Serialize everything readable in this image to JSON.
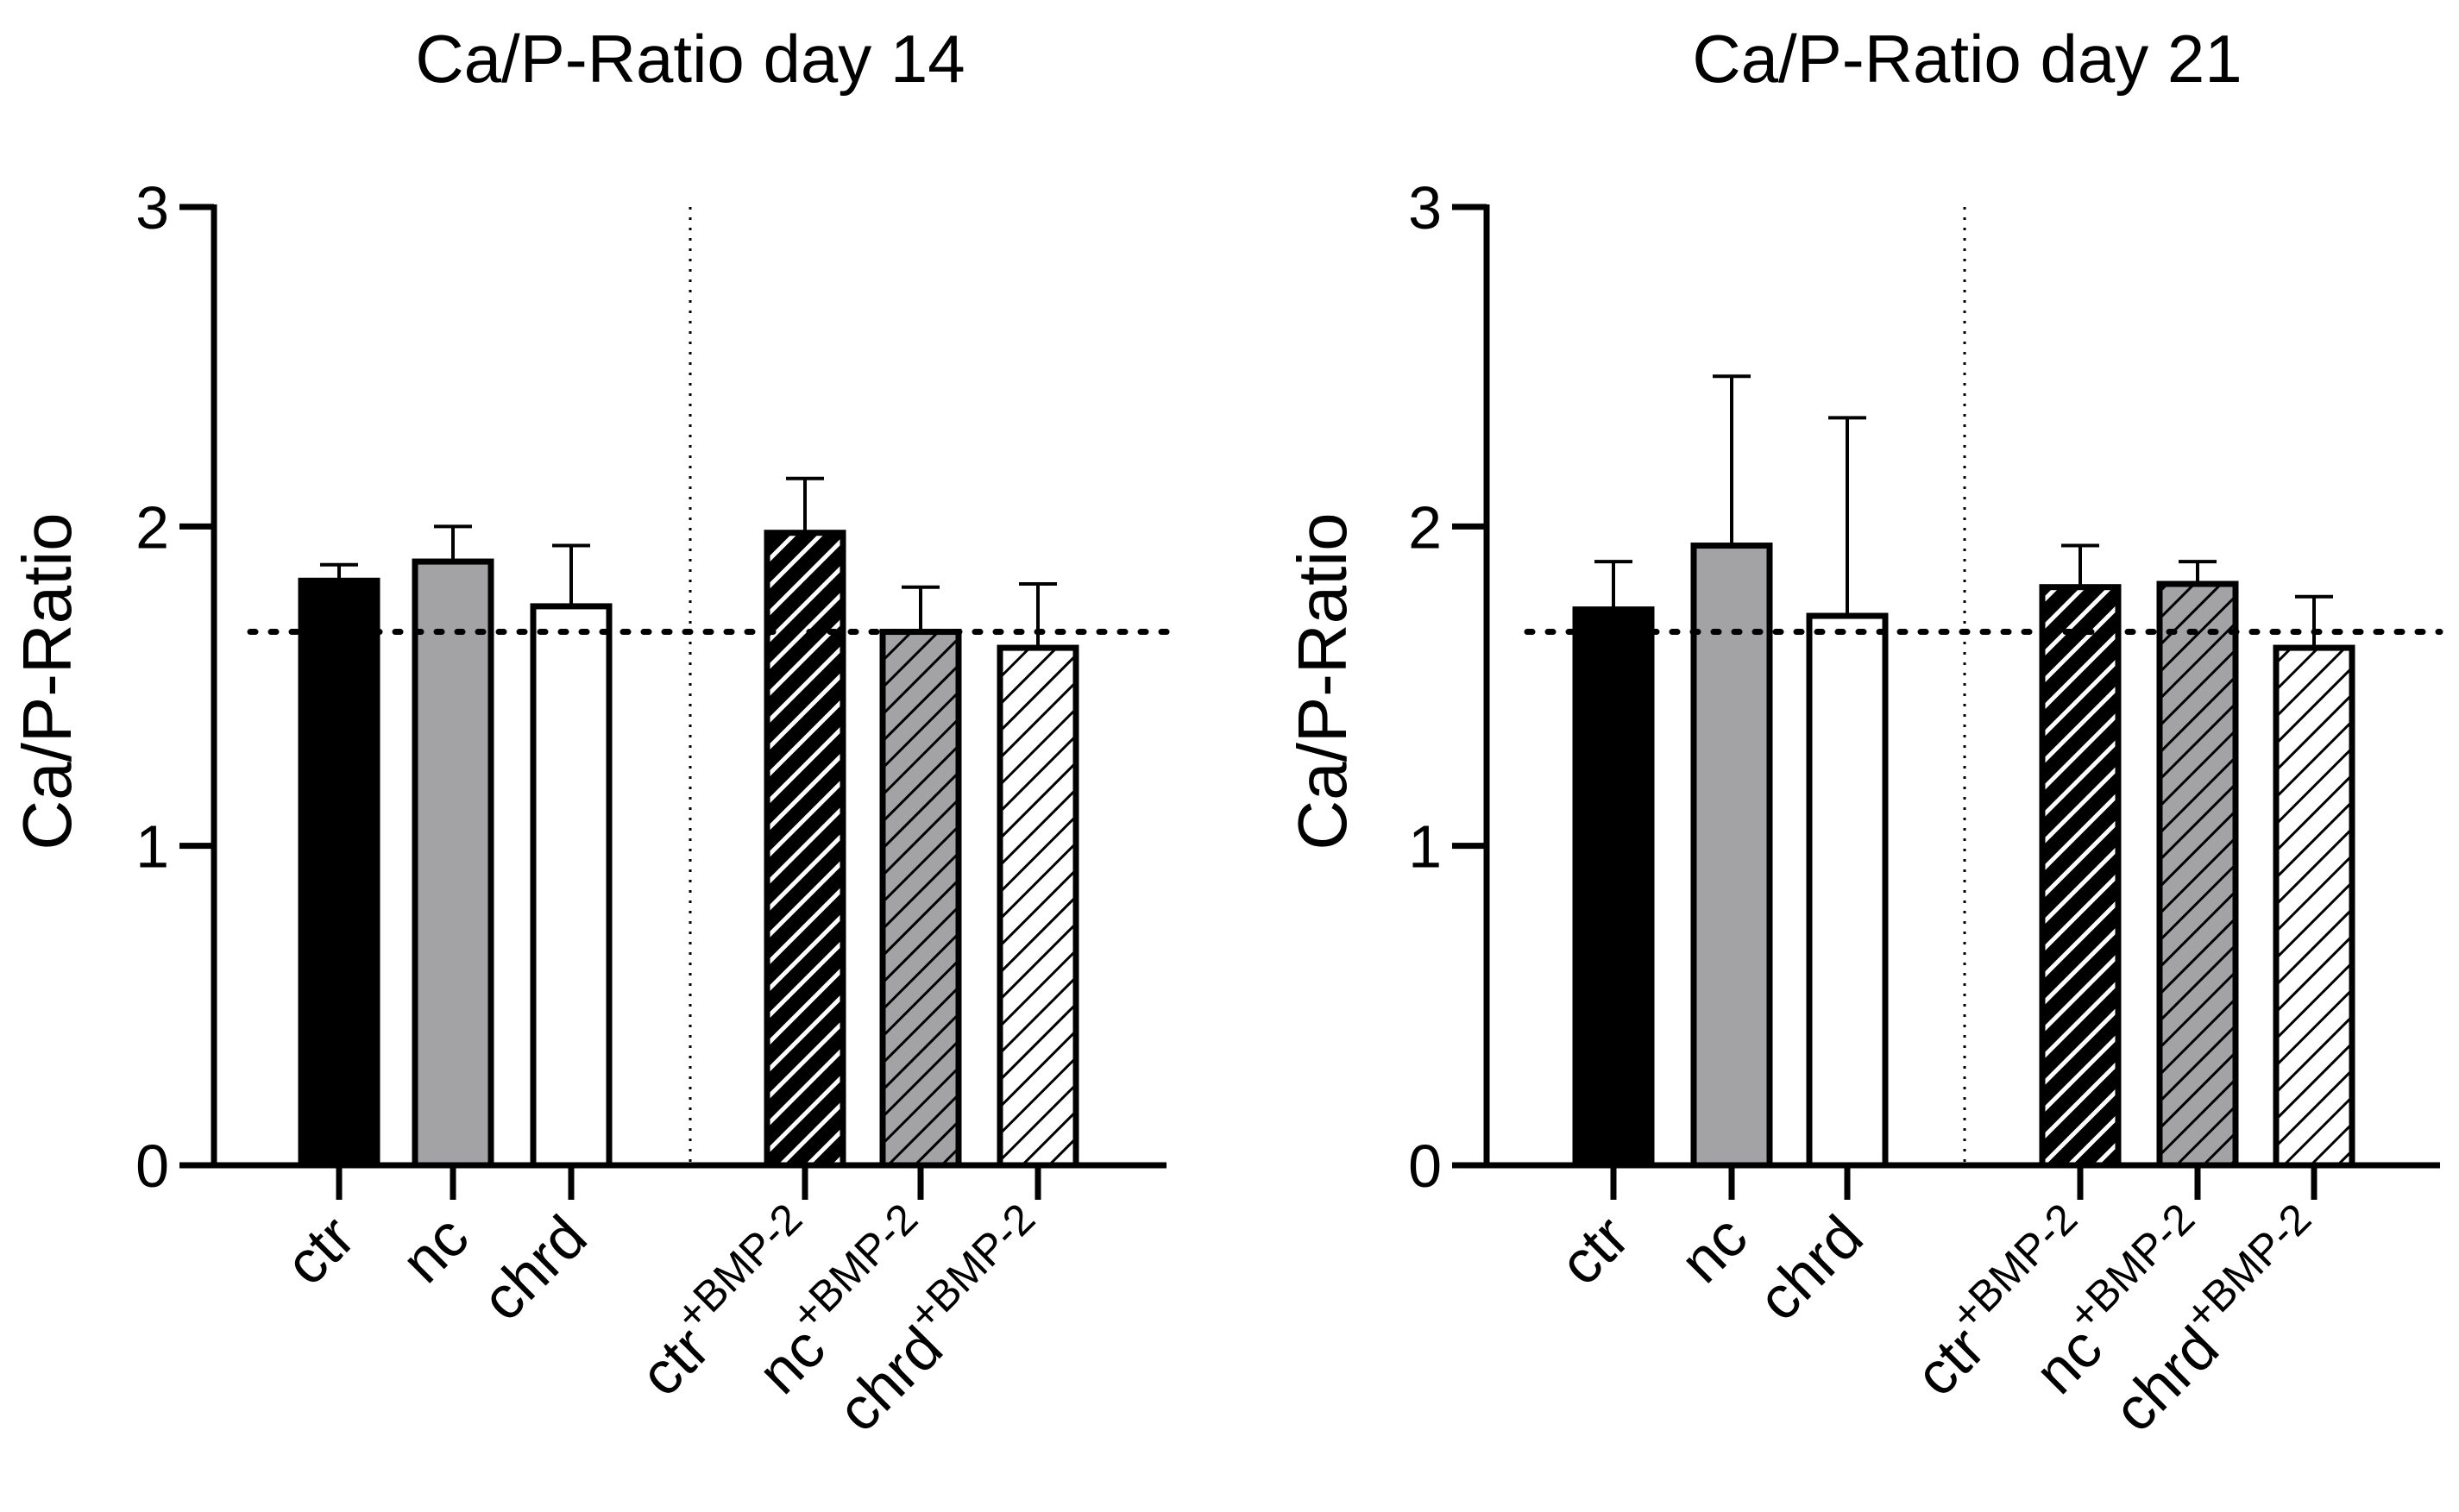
{
  "colors": {
    "ctr": "#000000",
    "nc": "#a3a3a6",
    "chrd": "#ffffff",
    "stroke": "#000000"
  },
  "chart_data": [
    {
      "type": "bar",
      "title": "Ca/P-Ratio day 14",
      "ylabel": "Ca/P-Ratio",
      "xlabel": "",
      "ylim": [
        0,
        3
      ],
      "yticks": [
        0,
        1,
        2,
        3
      ],
      "reference_line": 1.67,
      "grid": false,
      "categories": [
        {
          "label": "ctr",
          "sup": "",
          "fill": "ctr",
          "hatched": false
        },
        {
          "label": "nc",
          "sup": "",
          "fill": "nc",
          "hatched": false
        },
        {
          "label": "chrd",
          "sup": "",
          "fill": "chrd",
          "hatched": false
        },
        {
          "label": "ctr",
          "sup": "+BMP-2",
          "fill": "ctr",
          "hatched": true
        },
        {
          "label": "nc",
          "sup": "+BMP-2",
          "fill": "nc",
          "hatched": true
        },
        {
          "label": "chrd",
          "sup": "+BMP-2",
          "fill": "chrd",
          "hatched": true
        }
      ],
      "values": [
        1.83,
        1.89,
        1.75,
        1.98,
        1.67,
        1.62
      ],
      "errors": [
        0.05,
        0.11,
        0.19,
        0.17,
        0.14,
        0.2
      ]
    },
    {
      "type": "bar",
      "title": "Ca/P-Ratio day 21",
      "ylabel": "Ca/P-Ratio",
      "xlabel": "",
      "ylim": [
        0,
        3
      ],
      "yticks": [
        0,
        1,
        2,
        3
      ],
      "reference_line": 1.67,
      "grid": false,
      "categories": [
        {
          "label": "ctr",
          "sup": "",
          "fill": "ctr",
          "hatched": false
        },
        {
          "label": "nc",
          "sup": "",
          "fill": "nc",
          "hatched": false
        },
        {
          "label": "chrd",
          "sup": "",
          "fill": "chrd",
          "hatched": false
        },
        {
          "label": "ctr",
          "sup": "+BMP-2",
          "fill": "ctr",
          "hatched": true
        },
        {
          "label": "nc",
          "sup": "+BMP-2",
          "fill": "nc",
          "hatched": true
        },
        {
          "label": "chrd",
          "sup": "+BMP-2",
          "fill": "chrd",
          "hatched": true
        }
      ],
      "values": [
        1.74,
        1.94,
        1.72,
        1.81,
        1.82,
        1.62
      ],
      "errors": [
        0.15,
        0.53,
        0.62,
        0.13,
        0.07,
        0.16
      ]
    }
  ]
}
